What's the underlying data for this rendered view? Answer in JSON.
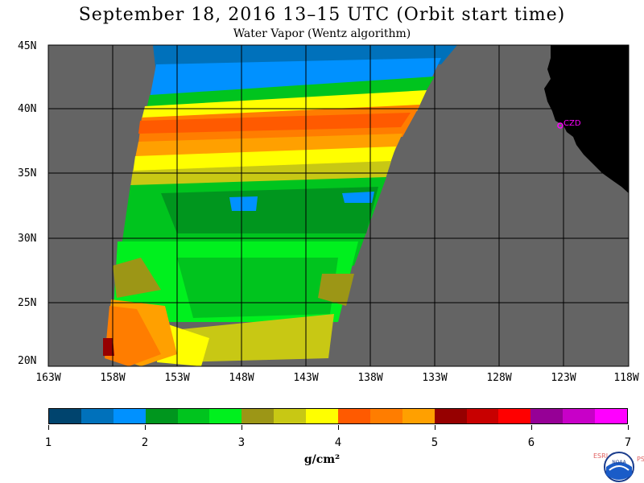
{
  "title": "September 18, 2016  13–15 UTC  (Orbit start time)",
  "subtitle": "Water Vapor (Wentz algorithm)",
  "map": {
    "lat_labels": [
      "45N",
      "40N",
      "35N",
      "30N",
      "25N",
      "20N"
    ],
    "lon_labels": [
      "163W",
      "158W",
      "153W",
      "148W",
      "143W",
      "138W",
      "133W",
      "128W",
      "123W",
      "118W"
    ],
    "lat_range": [
      20,
      45
    ],
    "lon_range": [
      -163,
      -118
    ],
    "station_label": "CZD",
    "colors": {
      "land": "#000000",
      "no_data": "#646464",
      "grid": "#000000",
      "station": "#ff00ff"
    }
  },
  "colorbar": {
    "colors": [
      "#00446e",
      "#0071bb",
      "#0091ff",
      "#00961e",
      "#00c41e",
      "#00f01e",
      "#9c9616",
      "#c8c814",
      "#ffff00",
      "#ff5a00",
      "#ff7d00",
      "#ffa000",
      "#960000",
      "#c80000",
      "#ff0000",
      "#960096",
      "#c800c8",
      "#ff00ff"
    ],
    "labels": [
      "1",
      "2",
      "3",
      "4",
      "5",
      "6",
      "7"
    ],
    "units": "g/cm²"
  },
  "logo": {
    "left_letters": "ESRL",
    "right_letters": "PSD",
    "center_text": "NOAA"
  }
}
